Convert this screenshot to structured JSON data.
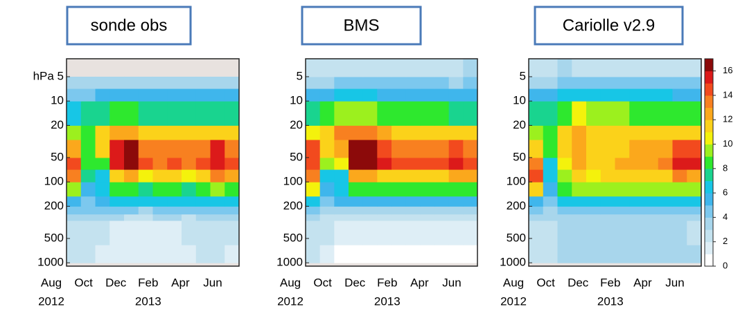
{
  "chart_data": [
    {
      "type": "heatmap",
      "title": "sonde obs",
      "categories": [
        "Aug",
        null,
        "Oct",
        null,
        "Dec",
        null,
        "Feb",
        null,
        "Apr",
        null,
        "Jun",
        null
      ],
      "x_years": [
        {
          "value": 0,
          "label": "2012"
        },
        {
          "value": 6,
          "label": "2013"
        }
      ],
      "y_edges": [
        1000,
        600,
        300,
        250,
        200,
        150,
        100,
        70,
        50,
        30,
        20,
        10,
        7,
        5,
        3
      ],
      "ylim": [
        1100,
        3
      ],
      "log_y": true,
      "yticks": [
        {
          "value": 5,
          "label": "hPa 5"
        },
        10,
        20,
        50,
        100,
        200,
        500,
        1000
      ],
      "values": [
        [
          2,
          2,
          1,
          1,
          1,
          1,
          1,
          1,
          1,
          2,
          2,
          1
        ],
        [
          2,
          2,
          2,
          1,
          1,
          1,
          1,
          1,
          2,
          2,
          2,
          2
        ],
        [
          3,
          3,
          3,
          3,
          2,
          2,
          3,
          3,
          2,
          3,
          3,
          3
        ],
        [
          4,
          4,
          4,
          4,
          4,
          3,
          4,
          4,
          4,
          4,
          4,
          4
        ],
        [
          5,
          4,
          5,
          6,
          6,
          6,
          6,
          6,
          6,
          6,
          6,
          6
        ],
        [
          9,
          5,
          6,
          8,
          8,
          7,
          8,
          8,
          7,
          8,
          9,
          8
        ],
        [
          13,
          7,
          6,
          11,
          12,
          10,
          11,
          11,
          10,
          11,
          13,
          12
        ],
        [
          14,
          8,
          8,
          15,
          16,
          14,
          13,
          14,
          13,
          14,
          15,
          14
        ],
        [
          12,
          8,
          11,
          15,
          16,
          13,
          13,
          13,
          13,
          13,
          15,
          13
        ],
        [
          9,
          8,
          11,
          12,
          12,
          11,
          11,
          11,
          11,
          11,
          11,
          11
        ],
        [
          6,
          7,
          7,
          8,
          8,
          7,
          7,
          7,
          7,
          7,
          7,
          7
        ],
        [
          4,
          4,
          5,
          5,
          5,
          5,
          5,
          5,
          5,
          5,
          5,
          5
        ],
        [
          3,
          3,
          3,
          3,
          3,
          3,
          3,
          3,
          3,
          3,
          3,
          3
        ],
        [
          null,
          null,
          null,
          null,
          null,
          null,
          null,
          null,
          null,
          null,
          null,
          null
        ]
      ]
    },
    {
      "type": "heatmap",
      "title": "BMS",
      "categories": [
        "Aug",
        null,
        "Oct",
        null,
        "Dec",
        null,
        "Feb",
        null,
        "Apr",
        null,
        "Jun",
        null
      ],
      "x_years": [
        {
          "value": 0,
          "label": "2012"
        },
        {
          "value": 6,
          "label": "2013"
        }
      ],
      "y_edges": [
        1000,
        600,
        300,
        250,
        200,
        150,
        100,
        70,
        50,
        30,
        20,
        10,
        7,
        5,
        3
      ],
      "ylim": [
        1100,
        3
      ],
      "log_y": true,
      "yticks": [
        5,
        10,
        20,
        50,
        100,
        200,
        500,
        1000
      ],
      "values": [
        [
          2,
          1,
          0,
          0,
          0,
          0,
          0,
          0,
          0,
          0,
          0,
          0
        ],
        [
          2,
          2,
          1,
          1,
          1,
          1,
          1,
          1,
          1,
          1,
          1,
          1
        ],
        [
          3,
          2,
          2,
          2,
          2,
          2,
          2,
          2,
          2,
          2,
          2,
          2
        ],
        [
          4,
          3,
          3,
          3,
          3,
          3,
          3,
          3,
          3,
          3,
          3,
          3
        ],
        [
          6,
          4,
          5,
          5,
          5,
          5,
          5,
          5,
          5,
          5,
          5,
          5
        ],
        [
          10,
          5,
          6,
          8,
          8,
          8,
          8,
          8,
          8,
          8,
          8,
          8
        ],
        [
          13,
          6,
          6,
          12,
          12,
          11,
          11,
          11,
          11,
          11,
          12,
          12
        ],
        [
          14,
          9,
          10,
          16,
          16,
          15,
          14,
          14,
          14,
          14,
          15,
          14
        ],
        [
          14,
          11,
          12,
          16,
          16,
          14,
          13,
          13,
          13,
          13,
          14,
          13
        ],
        [
          10,
          11,
          13,
          13,
          13,
          12,
          11,
          11,
          11,
          11,
          11,
          11
        ],
        [
          7,
          8,
          9,
          9,
          9,
          8,
          8,
          8,
          8,
          8,
          7,
          7
        ],
        [
          5,
          5,
          6,
          6,
          6,
          5,
          5,
          5,
          5,
          5,
          5,
          5
        ],
        [
          3,
          3,
          4,
          4,
          4,
          4,
          4,
          4,
          4,
          4,
          3,
          4
        ],
        [
          2,
          2,
          2,
          2,
          2,
          2,
          2,
          2,
          2,
          2,
          2,
          3
        ]
      ]
    },
    {
      "type": "heatmap",
      "title": "Cariolle v2.9",
      "categories": [
        "Aug",
        null,
        "Oct",
        null,
        "Dec",
        null,
        "Feb",
        null,
        "Apr",
        null,
        "Jun",
        null
      ],
      "x_years": [
        {
          "value": 0,
          "label": "2012"
        },
        {
          "value": 6,
          "label": "2013"
        }
      ],
      "y_edges": [
        1000,
        600,
        300,
        250,
        200,
        150,
        100,
        70,
        50,
        30,
        20,
        10,
        7,
        5,
        3
      ],
      "ylim": [
        1100,
        3
      ],
      "log_y": true,
      "yticks": [
        5,
        10,
        20,
        50,
        100,
        200,
        500,
        1000
      ],
      "values": [
        [
          2,
          2,
          3,
          3,
          3,
          3,
          3,
          3,
          3,
          3,
          3,
          3
        ],
        [
          2,
          2,
          3,
          3,
          3,
          3,
          3,
          3,
          3,
          3,
          3,
          2
        ],
        [
          3,
          3,
          3,
          3,
          3,
          3,
          3,
          3,
          3,
          3,
          3,
          3
        ],
        [
          4,
          3,
          4,
          4,
          4,
          4,
          4,
          4,
          4,
          4,
          4,
          4
        ],
        [
          5,
          4,
          6,
          6,
          6,
          6,
          6,
          6,
          6,
          6,
          6,
          6
        ],
        [
          11,
          5,
          8,
          9,
          9,
          9,
          9,
          9,
          9,
          9,
          9,
          9
        ],
        [
          14,
          6,
          9,
          11,
          10,
          11,
          11,
          11,
          11,
          11,
          13,
          12
        ],
        [
          13,
          6,
          10,
          12,
          11,
          11,
          12,
          12,
          12,
          13,
          15,
          15
        ],
        [
          11,
          8,
          11,
          12,
          11,
          11,
          11,
          12,
          12,
          12,
          14,
          14
        ],
        [
          9,
          8,
          11,
          12,
          11,
          11,
          11,
          11,
          11,
          11,
          11,
          11
        ],
        [
          7,
          7,
          8,
          10,
          9,
          9,
          9,
          8,
          8,
          8,
          8,
          8
        ],
        [
          5,
          5,
          6,
          6,
          6,
          6,
          6,
          6,
          6,
          6,
          5,
          5
        ],
        [
          3,
          3,
          4,
          4,
          4,
          4,
          4,
          4,
          4,
          4,
          4,
          4
        ],
        [
          2,
          2,
          3,
          2,
          2,
          2,
          2,
          2,
          2,
          2,
          2,
          2
        ]
      ],
      "zlim": [
        0,
        17
      ],
      "zticks": [
        0,
        2,
        4,
        6,
        8,
        10,
        12,
        14,
        16
      ],
      "colorscale": [
        "#ffffff",
        "#deeef6",
        "#c4e2ef",
        "#a8d6ec",
        "#7cc8ee",
        "#3fb6ec",
        "#17c6e6",
        "#19d48f",
        "#2ee82e",
        "#9cf01e",
        "#f4f20c",
        "#fbd21a",
        "#fba81c",
        "#f88020",
        "#f24a1e",
        "#dc1a1a",
        "#8c0a0a"
      ]
    }
  ]
}
